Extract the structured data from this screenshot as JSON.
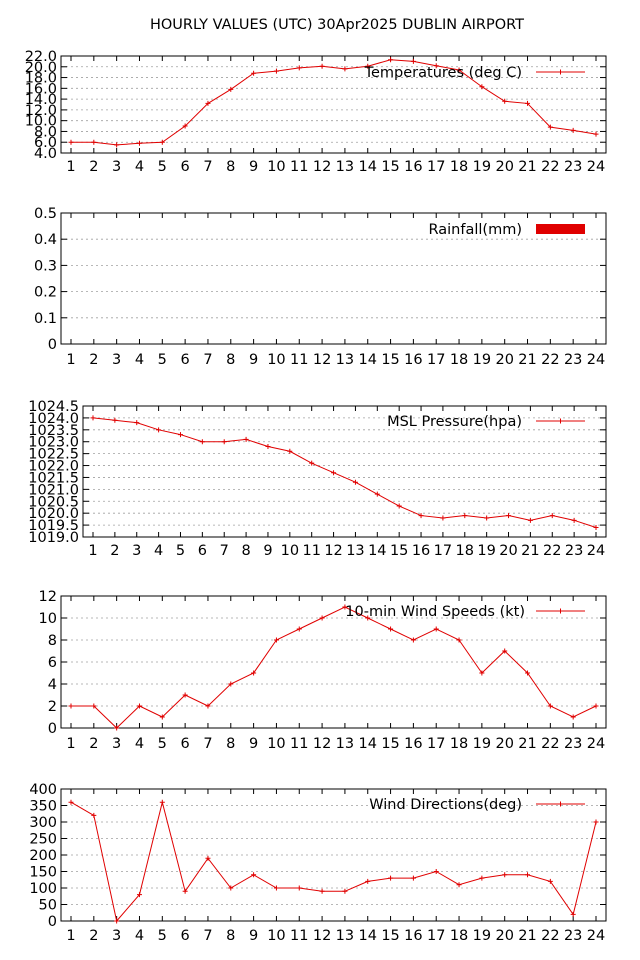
{
  "page_title": "HOURLY VALUES (UTC) 30Apr2025  DUBLIN AIRPORT",
  "colors": {
    "series": "#e00000",
    "frame": "#000000",
    "grid": "#a0a0a0"
  },
  "chart_data": [
    {
      "type": "line",
      "legend": "Temperatures (deg C)",
      "legend_position": "top-right",
      "x": [
        1,
        2,
        3,
        4,
        5,
        6,
        7,
        8,
        9,
        10,
        11,
        12,
        13,
        14,
        15,
        16,
        17,
        18,
        19,
        20,
        21,
        22,
        23,
        24
      ],
      "values": [
        6.0,
        6.0,
        5.5,
        5.8,
        6.0,
        9.0,
        13.2,
        15.8,
        18.8,
        19.2,
        19.8,
        20.1,
        19.6,
        20.1,
        21.3,
        21.0,
        20.2,
        19.4,
        16.3,
        13.6,
        13.2,
        8.8,
        8.2,
        7.5
      ],
      "ylim": [
        4,
        22
      ],
      "yticks": [
        "4.0",
        "6.0",
        "8.0",
        "10.0",
        "12.0",
        "14.0",
        "16.0",
        "18.0",
        "20.0",
        "22.0"
      ],
      "xticks": [
        "1",
        "2",
        "3",
        "4",
        "5",
        "6",
        "7",
        "8",
        "9",
        "10",
        "11",
        "12",
        "13",
        "14",
        "15",
        "16",
        "17",
        "18",
        "19",
        "20",
        "21",
        "22",
        "23",
        "24"
      ],
      "grid": true
    },
    {
      "type": "bar",
      "legend": "Rainfall(mm)",
      "legend_position": "top-right",
      "x": [
        1,
        2,
        3,
        4,
        5,
        6,
        7,
        8,
        9,
        10,
        11,
        12,
        13,
        14,
        15,
        16,
        17,
        18,
        19,
        20,
        21,
        22,
        23,
        24
      ],
      "values": [
        0,
        0,
        0,
        0,
        0,
        0,
        0,
        0,
        0,
        0,
        0,
        0,
        0,
        0,
        0,
        0,
        0,
        0,
        0,
        0,
        0,
        0,
        0,
        0
      ],
      "ylim": [
        0,
        0.5
      ],
      "yticks": [
        "0",
        "0.1",
        "0.2",
        "0.3",
        "0.4",
        "0.5"
      ],
      "xticks": [
        "1",
        "2",
        "3",
        "4",
        "5",
        "6",
        "7",
        "8",
        "9",
        "10",
        "11",
        "12",
        "13",
        "14",
        "15",
        "16",
        "17",
        "18",
        "19",
        "20",
        "21",
        "22",
        "23",
        "24"
      ],
      "grid": true
    },
    {
      "type": "line",
      "legend": "MSL Pressure(hpa)",
      "legend_position": "top-right",
      "x": [
        1,
        2,
        3,
        4,
        5,
        6,
        7,
        8,
        9,
        10,
        11,
        12,
        13,
        14,
        15,
        16,
        17,
        18,
        19,
        20,
        21,
        22,
        23,
        24
      ],
      "values": [
        1024.0,
        1023.9,
        1023.8,
        1023.5,
        1023.3,
        1023.0,
        1023.0,
        1023.1,
        1022.8,
        1022.6,
        1022.1,
        1021.7,
        1021.3,
        1020.8,
        1020.3,
        1019.9,
        1019.8,
        1019.9,
        1019.8,
        1019.9,
        1019.7,
        1019.9,
        1019.7,
        1019.4
      ],
      "ylim": [
        1019.0,
        1024.5
      ],
      "yticks": [
        "1019.0",
        "1019.5",
        "1020.0",
        "1020.5",
        "1021.0",
        "1021.5",
        "1022.0",
        "1022.5",
        "1023.0",
        "1023.5",
        "1024.0",
        "1024.5"
      ],
      "xticks": [
        "1",
        "2",
        "3",
        "4",
        "5",
        "6",
        "7",
        "8",
        "9",
        "10",
        "11",
        "12",
        "13",
        "14",
        "15",
        "16",
        "17",
        "18",
        "19",
        "20",
        "21",
        "22",
        "23",
        "24"
      ],
      "grid": true
    },
    {
      "type": "line",
      "legend": "10-min Wind Speeds (kt)",
      "legend_position": "top-right",
      "x": [
        1,
        2,
        3,
        4,
        5,
        6,
        7,
        8,
        9,
        10,
        11,
        12,
        13,
        14,
        15,
        16,
        17,
        18,
        19,
        20,
        21,
        22,
        23,
        24
      ],
      "values": [
        2,
        2,
        0,
        2,
        1,
        3,
        2,
        4,
        5,
        8,
        9,
        10,
        11,
        10,
        9,
        8,
        9,
        8,
        5,
        7,
        5,
        2,
        1,
        2
      ],
      "ylim": [
        0,
        12
      ],
      "yticks": [
        "0",
        "2",
        "4",
        "6",
        "8",
        "10",
        "12"
      ],
      "xticks": [
        "1",
        "2",
        "3",
        "4",
        "5",
        "6",
        "7",
        "8",
        "9",
        "10",
        "11",
        "12",
        "13",
        "14",
        "15",
        "16",
        "17",
        "18",
        "19",
        "20",
        "21",
        "22",
        "23",
        "24"
      ],
      "grid": true
    },
    {
      "type": "line",
      "legend": "Wind Directions(deg)",
      "legend_position": "top-right",
      "x": [
        1,
        2,
        3,
        4,
        5,
        6,
        7,
        8,
        9,
        10,
        11,
        12,
        13,
        14,
        15,
        16,
        17,
        18,
        19,
        20,
        21,
        22,
        23,
        24
      ],
      "values": [
        360,
        320,
        0,
        80,
        360,
        90,
        190,
        100,
        140,
        100,
        100,
        90,
        90,
        120,
        130,
        130,
        150,
        110,
        130,
        140,
        140,
        120,
        20,
        300
      ],
      "ylim": [
        0,
        400
      ],
      "yticks": [
        "0",
        "50",
        "100",
        "150",
        "200",
        "250",
        "300",
        "350",
        "400"
      ],
      "xticks": [
        "1",
        "2",
        "3",
        "4",
        "5",
        "6",
        "7",
        "8",
        "9",
        "10",
        "11",
        "12",
        "13",
        "14",
        "15",
        "16",
        "17",
        "18",
        "19",
        "20",
        "21",
        "22",
        "23",
        "24"
      ],
      "grid": true
    }
  ]
}
